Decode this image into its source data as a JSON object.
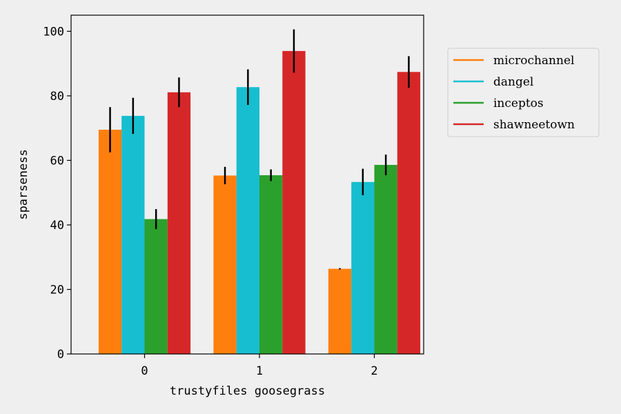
{
  "chart_data": {
    "type": "bar",
    "xlabel": "trustyfiles goosegrass",
    "ylabel": "sparseness",
    "categories": [
      "0",
      "1",
      "2"
    ],
    "ylim": [
      0,
      105
    ],
    "yticks": [
      0,
      20,
      40,
      60,
      80,
      100
    ],
    "grid": false,
    "legend_position": "right-outside-top",
    "series": [
      {
        "name": "microchannel",
        "color": "#ff7f0e",
        "values": [
          69.5,
          55.3,
          26.4
        ],
        "errors": [
          7.0,
          2.7,
          0.2
        ]
      },
      {
        "name": "dangel",
        "color": "#17becf",
        "values": [
          73.8,
          82.7,
          53.3
        ],
        "errors": [
          5.6,
          5.5,
          4.1
        ]
      },
      {
        "name": "inceptos",
        "color": "#2ca02c",
        "values": [
          41.8,
          55.4,
          58.6
        ],
        "errors": [
          3.1,
          1.8,
          3.2
        ]
      },
      {
        "name": "shawneetown",
        "color": "#d62728",
        "values": [
          81.1,
          93.9,
          87.4
        ],
        "errors": [
          4.6,
          6.7,
          4.9
        ]
      }
    ]
  }
}
